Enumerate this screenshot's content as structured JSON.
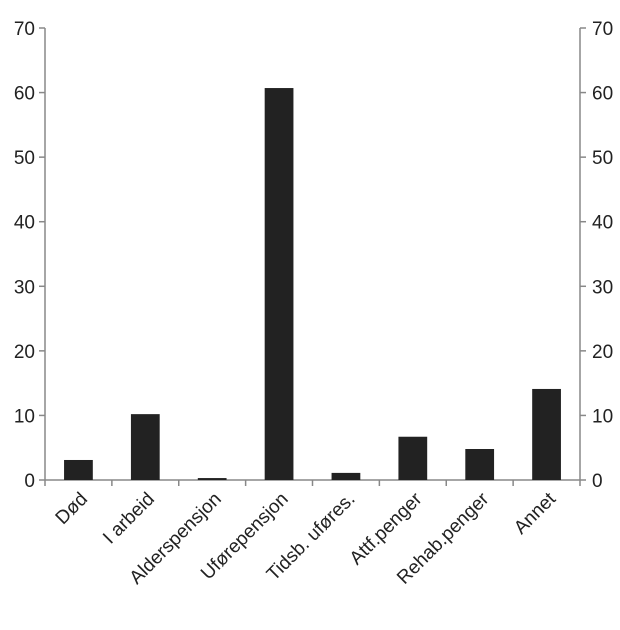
{
  "chart_data": {
    "type": "bar",
    "categories": [
      "Død",
      "I arbeid",
      "Alderspensjon",
      "Uførepensjon",
      "Tidsb. uføres.",
      "Attf.penger",
      "Rehab.penger",
      "Annet"
    ],
    "values": [
      3.1,
      10.2,
      0.3,
      60.7,
      1.1,
      6.7,
      4.8,
      14.1
    ],
    "ylim": [
      0,
      70
    ],
    "yticks": [
      0,
      10,
      20,
      30,
      40,
      50,
      60,
      70
    ],
    "secondary_y_axis": true,
    "grid": false,
    "bar_color": "#222222",
    "title": "",
    "xlabel": "",
    "ylabel": ""
  }
}
